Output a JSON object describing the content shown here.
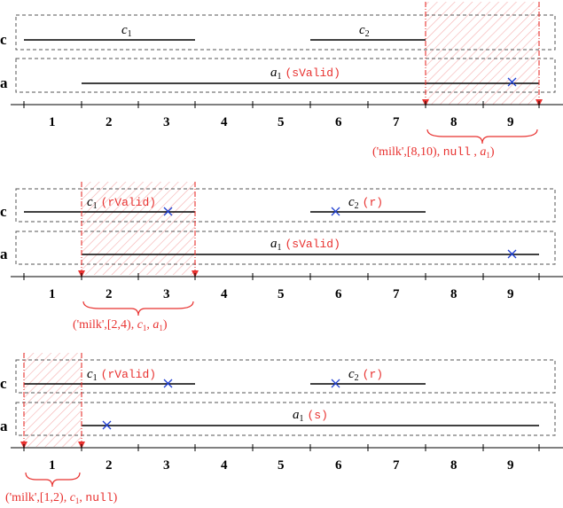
{
  "row_labels": {
    "c": "c",
    "a": "a"
  },
  "ticks": [
    "1",
    "2",
    "3",
    "4",
    "5",
    "6",
    "7",
    "8",
    "9"
  ],
  "symbols": {
    "c1": "c",
    "c2": "c",
    "a1": "a",
    "sub1": "1",
    "sub2": "2"
  },
  "tags": {
    "rValid": "(rValid)",
    "sValid": "(sValid)",
    "r": "(r)",
    "s": "(s)"
  },
  "panels": [
    {
      "caption": {
        "pre": "('milk',[8,10), ",
        "null1": "null",
        "mid": " , ",
        "var": "a",
        "sub": "1",
        "post": ")"
      }
    },
    {
      "caption": {
        "pre": "('milk',[2,4), ",
        "var1": "c",
        "sub1": "1",
        "mid": ", ",
        "var2": "a",
        "sub2": "1",
        "post": ")"
      }
    },
    {
      "caption": {
        "pre": "('milk',[1,2), ",
        "var1": "c",
        "sub1": "1",
        "mid": ", ",
        "null2": "null",
        "post": ")"
      }
    }
  ],
  "colors": {
    "highlight": "#e8312f",
    "marker": "#1f3fd1",
    "hatch": "#f4a6a6",
    "box": "#555555"
  }
}
